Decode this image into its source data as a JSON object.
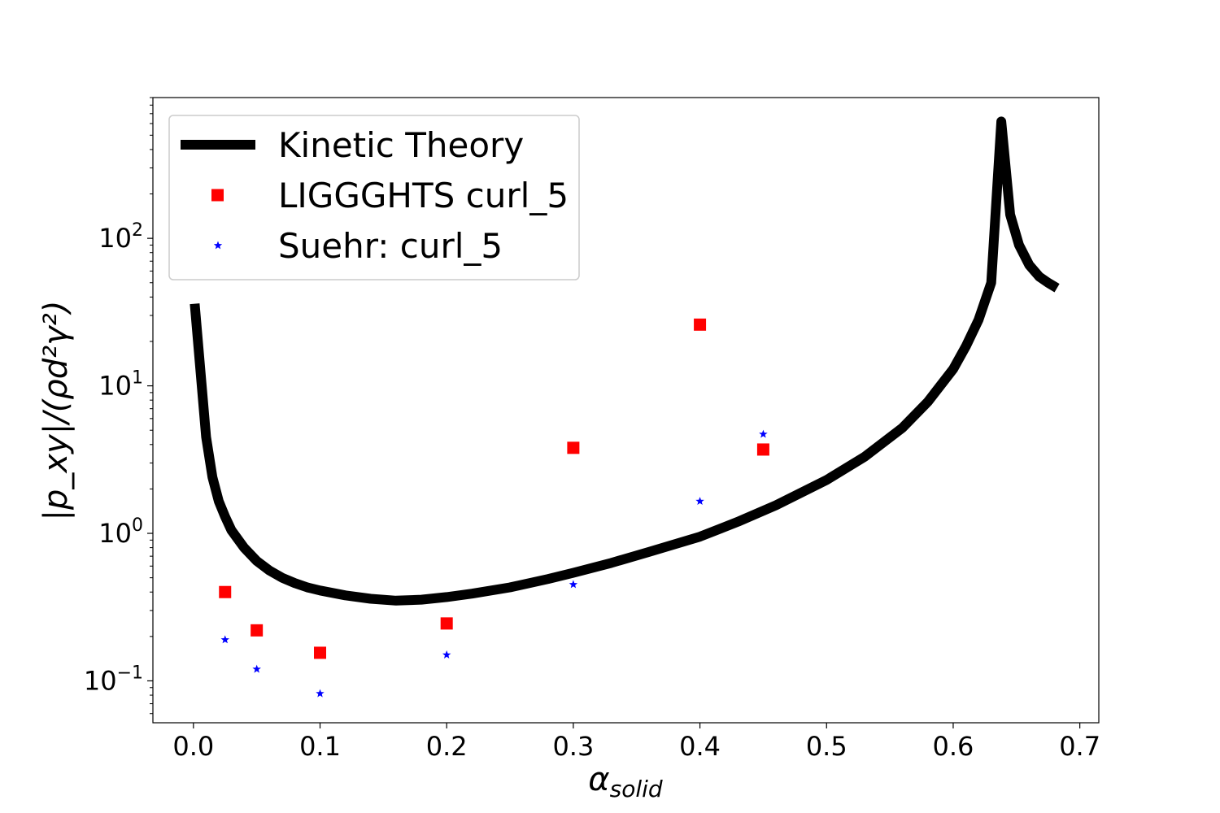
{
  "chart_data": {
    "type": "line",
    "title": "",
    "xlabel": "α",
    "xlabel_sub": "solid",
    "ylabel": "|p_xy|/(ρd²γ²)",
    "xlim": [
      -0.032,
      0.715
    ],
    "ylim": [
      0.052,
      900
    ],
    "yscale": "log",
    "grid": false,
    "legend_position": "upper-left",
    "x_ticks": [
      {
        "value": 0.0,
        "label": "0.0"
      },
      {
        "value": 0.1,
        "label": "0.1"
      },
      {
        "value": 0.2,
        "label": "0.2"
      },
      {
        "value": 0.3,
        "label": "0.3"
      },
      {
        "value": 0.4,
        "label": "0.4"
      },
      {
        "value": 0.5,
        "label": "0.5"
      },
      {
        "value": 0.6,
        "label": "0.6"
      },
      {
        "value": 0.7,
        "label": "0.7"
      }
    ],
    "y_ticks": [
      {
        "value": 0.1,
        "base": "10",
        "exp": "−1"
      },
      {
        "value": 1,
        "base": "10",
        "exp": "0"
      },
      {
        "value": 10,
        "base": "10",
        "exp": "1"
      },
      {
        "value": 100,
        "base": "10",
        "exp": "2"
      }
    ],
    "series": [
      {
        "name": "Kinetic Theory",
        "kind": "line",
        "color": "#000000",
        "x": [
          0.001,
          0.01,
          0.015,
          0.02,
          0.025,
          0.03,
          0.04,
          0.05,
          0.06,
          0.07,
          0.08,
          0.09,
          0.1,
          0.12,
          0.14,
          0.16,
          0.18,
          0.2,
          0.22,
          0.25,
          0.28,
          0.3,
          0.33,
          0.36,
          0.4,
          0.43,
          0.46,
          0.5,
          0.53,
          0.56,
          0.58,
          0.6,
          0.61,
          0.62,
          0.63,
          0.638,
          0.645,
          0.652,
          0.66,
          0.668,
          0.675,
          0.682
        ],
        "y": [
          36,
          4.5,
          2.4,
          1.65,
          1.3,
          1.05,
          0.8,
          0.65,
          0.56,
          0.5,
          0.46,
          0.43,
          0.41,
          0.38,
          0.36,
          0.35,
          0.355,
          0.37,
          0.39,
          0.43,
          0.49,
          0.54,
          0.63,
          0.75,
          0.95,
          1.2,
          1.55,
          2.3,
          3.3,
          5.2,
          7.8,
          13,
          18.5,
          28,
          50,
          620,
          145,
          90,
          66,
          55,
          50,
          46
        ]
      },
      {
        "name": "LIGGGHTS curl_5",
        "kind": "scatter",
        "marker": "square",
        "color": "#ff0000",
        "x": [
          0.025,
          0.05,
          0.1,
          0.2,
          0.3,
          0.4,
          0.45
        ],
        "y": [
          0.4,
          0.22,
          0.155,
          0.245,
          3.8,
          26,
          3.7
        ]
      },
      {
        "name": "Suehr: curl_5",
        "kind": "scatter",
        "marker": "star",
        "color": "#0000ff",
        "x": [
          0.025,
          0.05,
          0.1,
          0.2,
          0.3,
          0.4,
          0.45
        ],
        "y": [
          0.19,
          0.12,
          0.082,
          0.15,
          0.45,
          1.65,
          4.7
        ]
      }
    ]
  }
}
